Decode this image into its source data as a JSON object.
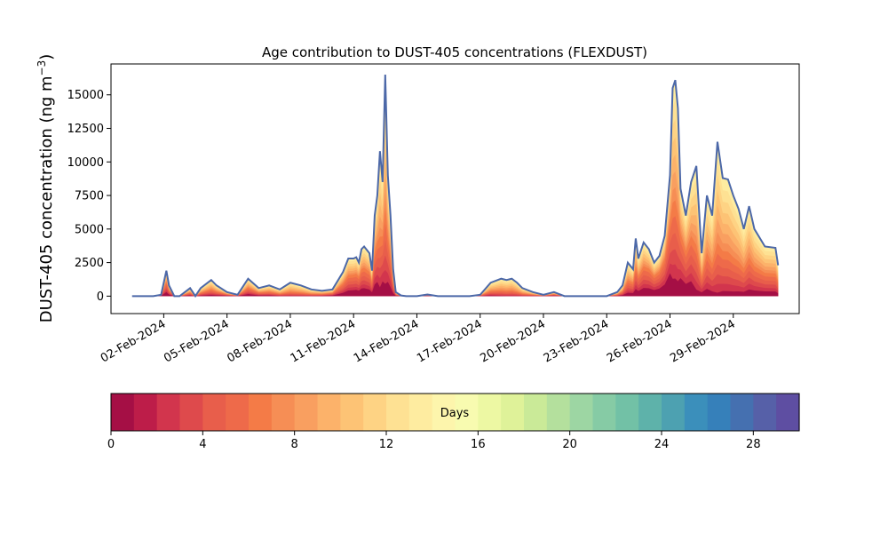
{
  "chart_data": {
    "type": "area",
    "title": "Age contribution to DUST-405 concentrations (FLEXDUST)",
    "ylabel_prefix": "DUST-405 concentration (ng m",
    "ylabel_exp": "−3",
    "ylabel_suffix": ")",
    "ylim": [
      -1300,
      17300
    ],
    "xlim": [
      "2024-01-30T12:00",
      "2024-03-03T03:00"
    ],
    "yticks": [
      0,
      2500,
      5000,
      7500,
      10000,
      12500,
      15000
    ],
    "xticks": [
      {
        "date": "2024-02-02",
        "label": "02-Feb-2024"
      },
      {
        "date": "2024-02-05",
        "label": "05-Feb-2024"
      },
      {
        "date": "2024-02-08",
        "label": "08-Feb-2024"
      },
      {
        "date": "2024-02-11",
        "label": "11-Feb-2024"
      },
      {
        "date": "2024-02-14",
        "label": "14-Feb-2024"
      },
      {
        "date": "2024-02-17",
        "label": "17-Feb-2024"
      },
      {
        "date": "2024-02-20",
        "label": "20-Feb-2024"
      },
      {
        "date": "2024-02-23",
        "label": "23-Feb-2024"
      },
      {
        "date": "2024-02-26",
        "label": "26-Feb-2024"
      },
      {
        "date": "2024-02-29",
        "label": "29-Feb-2024"
      }
    ],
    "series_total": {
      "x": [
        "2024-01-31T12:00",
        "2024-02-01T12:00",
        "2024-02-01T21:00",
        "2024-02-02T03:00",
        "2024-02-02T06:00",
        "2024-02-02T12:00",
        "2024-02-02T18:00",
        "2024-02-03T06:00",
        "2024-02-03T12:00",
        "2024-02-03T18:00",
        "2024-02-04T06:00",
        "2024-02-04T12:00",
        "2024-02-05T00:00",
        "2024-02-05T12:00",
        "2024-02-06T00:00",
        "2024-02-06T12:00",
        "2024-02-07T00:00",
        "2024-02-07T12:00",
        "2024-02-08T00:00",
        "2024-02-08T12:00",
        "2024-02-09T00:00",
        "2024-02-09T12:00",
        "2024-02-10T00:00",
        "2024-02-10T12:00",
        "2024-02-10T18:00",
        "2024-02-11T00:00",
        "2024-02-11T03:00",
        "2024-02-11T06:00",
        "2024-02-11T09:00",
        "2024-02-11T12:00",
        "2024-02-11T18:00",
        "2024-02-11T21:00",
        "2024-02-12T00:00",
        "2024-02-12T03:00",
        "2024-02-12T06:00",
        "2024-02-12T09:00",
        "2024-02-12T12:00",
        "2024-02-12T15:00",
        "2024-02-12T18:00",
        "2024-02-12T21:00",
        "2024-02-13T00:00",
        "2024-02-13T06:00",
        "2024-02-13T12:00",
        "2024-02-14T00:00",
        "2024-02-14T12:00",
        "2024-02-15T00:00",
        "2024-02-15T12:00",
        "2024-02-16T00:00",
        "2024-02-16T12:00",
        "2024-02-17T00:00",
        "2024-02-17T12:00",
        "2024-02-18T00:00",
        "2024-02-18T06:00",
        "2024-02-18T12:00",
        "2024-02-18T18:00",
        "2024-02-19T00:00",
        "2024-02-19T12:00",
        "2024-02-20T00:00",
        "2024-02-20T12:00",
        "2024-02-21T00:00",
        "2024-02-21T12:00",
        "2024-02-22T00:00",
        "2024-02-22T12:00",
        "2024-02-23T00:00",
        "2024-02-23T12:00",
        "2024-02-23T18:00",
        "2024-02-24T00:00",
        "2024-02-24T06:00",
        "2024-02-24T09:00",
        "2024-02-24T12:00",
        "2024-02-24T18:00",
        "2024-02-25T00:00",
        "2024-02-25T06:00",
        "2024-02-25T12:00",
        "2024-02-25T18:00",
        "2024-02-26T00:00",
        "2024-02-26T03:00",
        "2024-02-26T06:00",
        "2024-02-26T09:00",
        "2024-02-26T12:00",
        "2024-02-26T18:00",
        "2024-02-27T00:00",
        "2024-02-27T06:00",
        "2024-02-27T12:00",
        "2024-02-27T18:00",
        "2024-02-28T00:00",
        "2024-02-28T06:00",
        "2024-02-28T12:00",
        "2024-02-28T18:00",
        "2024-02-29T00:00",
        "2024-02-29T06:00",
        "2024-02-29T12:00",
        "2024-02-29T18:00",
        "2024-03-01T00:00",
        "2024-03-01T12:00",
        "2024-03-02T00:00",
        "2024-03-02T03:00"
      ],
      "y": [
        0,
        0,
        100,
        1900,
        800,
        0,
        0,
        600,
        0,
        600,
        1200,
        800,
        300,
        100,
        1300,
        600,
        800,
        500,
        1000,
        800,
        500,
        400,
        500,
        1800,
        2800,
        2800,
        2900,
        2500,
        3500,
        3700,
        3200,
        1900,
        6000,
        7500,
        10800,
        8500,
        16500,
        9000,
        6000,
        2000,
        300,
        50,
        0,
        0,
        120,
        0,
        0,
        0,
        0,
        100,
        1000,
        1300,
        1200,
        1300,
        1000,
        600,
        300,
        100,
        300,
        0,
        0,
        0,
        0,
        0,
        300,
        800,
        2500,
        2000,
        4300,
        2800,
        4000,
        3500,
        2500,
        3000,
        4500,
        9000,
        15500,
        16100,
        14000,
        8000,
        6000,
        8500,
        9700,
        3200,
        7500,
        6000,
        11500,
        8800,
        8700,
        7500,
        6500,
        5000,
        6700,
        5000,
        3700,
        3600,
        2300
      ]
    },
    "colorbar": {
      "label": "Days",
      "min": 0,
      "max": 30,
      "ticks": [
        0,
        4,
        8,
        12,
        16,
        20,
        24,
        28
      ],
      "colors": [
        "#a50f45",
        "#bd1d49",
        "#d2354d",
        "#de4a4c",
        "#e85e4b",
        "#ee6a4a",
        "#f47b47",
        "#f68e55",
        "#f99f60",
        "#fcb26a",
        "#fdc375",
        "#fed384",
        "#fee193",
        "#feeca0",
        "#fdf5ac",
        "#f8fbb0",
        "#edf8a3",
        "#dff299",
        "#caea98",
        "#b4e09d",
        "#9dd6a3",
        "#86cba5",
        "#72c1a6",
        "#5eb2aa",
        "#4da1b1",
        "#3b8fbb",
        "#3680ba",
        "#4570b0",
        "#5660a8",
        "#5e4ea2"
      ]
    },
    "colors": {
      "total_line": "#4c68a8"
    }
  }
}
